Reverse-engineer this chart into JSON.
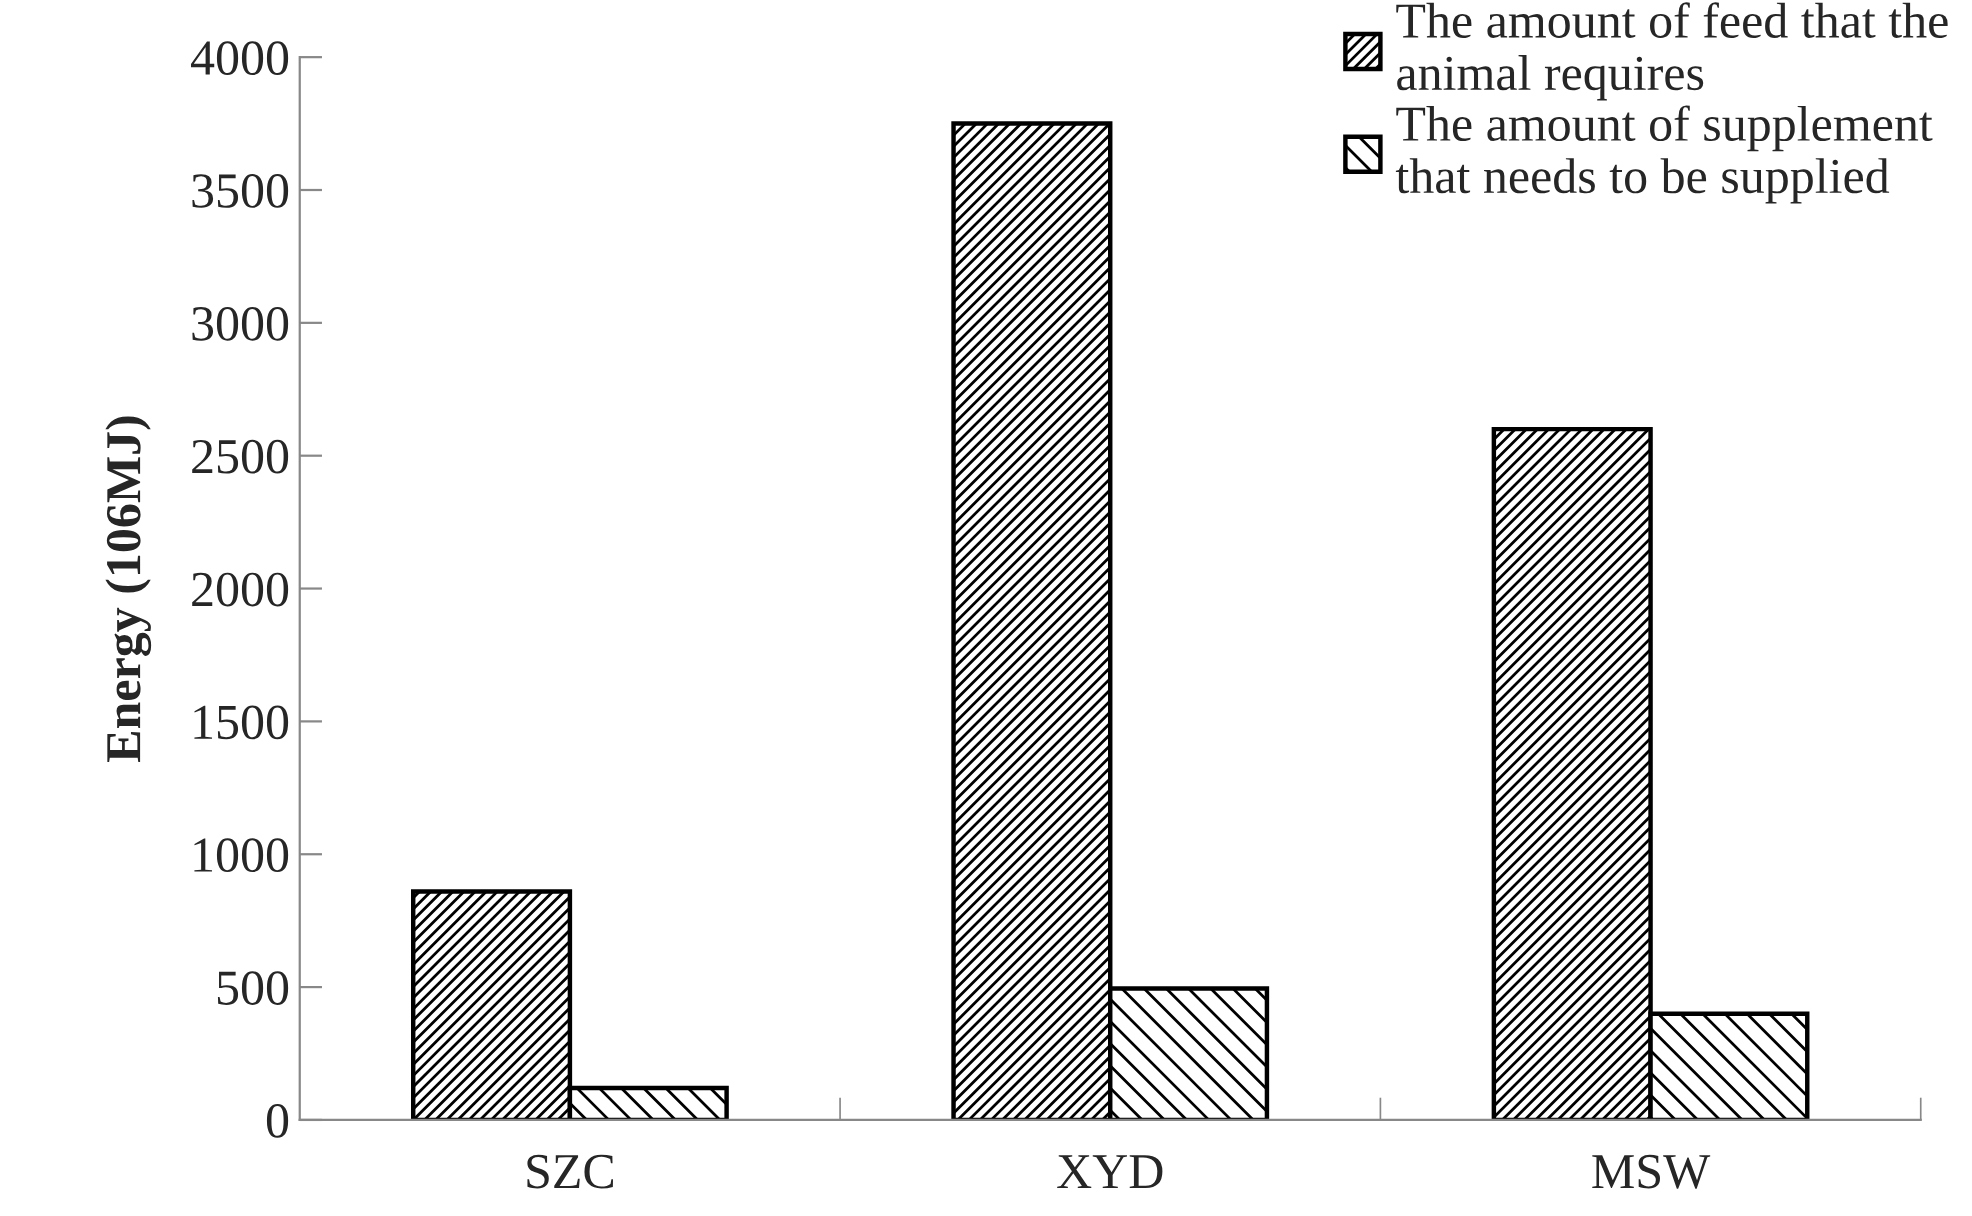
{
  "chart_data": {
    "type": "bar",
    "ylabel": "Energy (106MJ)",
    "categories": [
      "SZC",
      "XYD",
      "MSW"
    ],
    "series": [
      {
        "name": "The amount of feed that the animal requires",
        "color": "#000000",
        "values": [
          860,
          3750,
          2600
        ]
      },
      {
        "name": "The amount of supplement that needs to be supplied",
        "color": "#000000",
        "values": [
          120,
          495,
          400
        ]
      }
    ],
    "ylim": [
      0,
      4000
    ],
    "yticks": [
      0,
      500,
      1000,
      1500,
      2000,
      2500,
      3000,
      3500,
      4000
    ],
    "grid": false,
    "legend": "top right"
  }
}
